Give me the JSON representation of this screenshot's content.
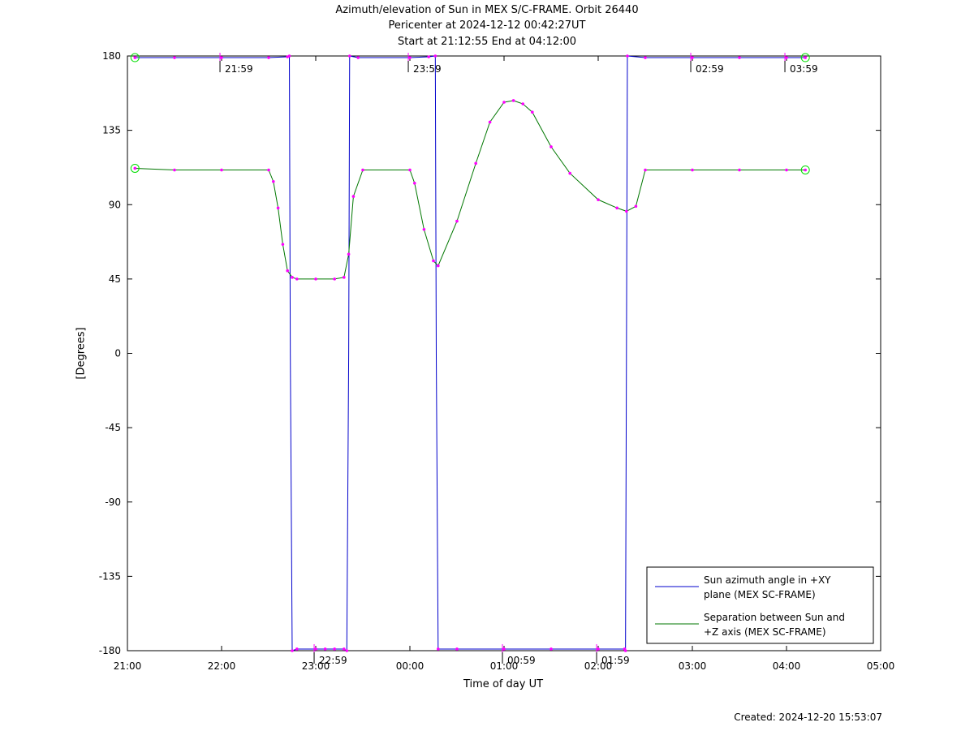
{
  "title": {
    "line1": "Azimuth/elevation of Sun in MEX S/C-FRAME.  Orbit 26440",
    "line2": "Pericenter at 2024-12-12 00:42:27UT",
    "line3": "Start at 21:12:55 End at 04:12:00"
  },
  "xlabel": "Time of day UT",
  "ylabel": "[Degrees]",
  "created": "Created: 2024-12-20 15:53:07",
  "chart_data": {
    "type": "line",
    "x_unit": "hours since 21:00 UT",
    "xlim": [
      0,
      8
    ],
    "ylim": [
      -180,
      180
    ],
    "x_ticks": [
      {
        "x": 0,
        "label": "21:00"
      },
      {
        "x": 1,
        "label": "22:00"
      },
      {
        "x": 2,
        "label": "23:00"
      },
      {
        "x": 3,
        "label": "00:00"
      },
      {
        "x": 4,
        "label": "01:00"
      },
      {
        "x": 5,
        "label": "02:00"
      },
      {
        "x": 6,
        "label": "03:00"
      },
      {
        "x": 7,
        "label": "04:00"
      },
      {
        "x": 8,
        "label": "05:00"
      }
    ],
    "y_ticks": [
      180,
      135,
      90,
      45,
      0,
      -45,
      -90,
      -135,
      -180
    ],
    "legend": {
      "position": "bottom-right",
      "entries": [
        {
          "line1": "Sun azimuth angle in +XY",
          "line2": "plane (MEX SC-FRAME)",
          "color": "#0000cc"
        },
        {
          "line1": "Separation between Sun and",
          "line2": "+Z axis (MEX SC-FRAME)",
          "color": "#007700"
        }
      ]
    },
    "marker_color": "#ff00ff",
    "start_end_marker_color": "#00dd00",
    "hour_markers": [
      {
        "x": 0.983,
        "label": "21:59",
        "series": "azimuth"
      },
      {
        "x": 1.983,
        "label": "22:59",
        "series": "azimuth"
      },
      {
        "x": 2.983,
        "label": "23:59",
        "series": "azimuth"
      },
      {
        "x": 3.983,
        "label": "00:59",
        "series": "azimuth"
      },
      {
        "x": 4.983,
        "label": "01:59",
        "series": "azimuth"
      },
      {
        "x": 5.983,
        "label": "02:59",
        "series": "azimuth"
      },
      {
        "x": 6.983,
        "label": "03:59",
        "series": "azimuth"
      }
    ],
    "series": [
      {
        "name": "Sun azimuth angle in +XY plane (MEX SC-FRAME)",
        "color": "#0000cc",
        "x": [
          0.08,
          0.5,
          1.0,
          1.5,
          1.7,
          1.72,
          1.73,
          1.75,
          1.8,
          2.0,
          2.1,
          2.2,
          2.3,
          2.33,
          2.35,
          2.36,
          2.45,
          3.0,
          3.2,
          3.27,
          3.28,
          3.3,
          3.5,
          4.0,
          4.5,
          5.0,
          5.28,
          5.29,
          5.3,
          5.31,
          5.5,
          6.0,
          6.5,
          7.0,
          7.2
        ],
        "y": [
          179,
          179,
          179,
          179,
          179.5,
          180,
          0,
          -180,
          -179,
          -179,
          -179,
          -179,
          -179,
          -180,
          0,
          180,
          179,
          179,
          179.5,
          180,
          0,
          -179,
          -179,
          -179,
          -179,
          -179,
          -179,
          -180,
          0,
          180,
          179,
          179,
          179,
          179,
          179
        ]
      },
      {
        "name": "Separation between Sun and +Z axis (MEX SC-FRAME)",
        "color": "#007700",
        "x": [
          0.08,
          0.5,
          1.0,
          1.5,
          1.55,
          1.6,
          1.65,
          1.7,
          1.75,
          1.8,
          2.0,
          2.2,
          2.3,
          2.35,
          2.4,
          2.5,
          3.0,
          3.05,
          3.15,
          3.25,
          3.3,
          3.5,
          3.7,
          3.85,
          4.0,
          4.1,
          4.2,
          4.3,
          4.5,
          4.7,
          5.0,
          5.2,
          5.3,
          5.4,
          5.5,
          6.0,
          6.5,
          7.0,
          7.2
        ],
        "y": [
          112,
          111,
          111,
          111,
          104,
          88,
          66,
          50,
          46,
          45,
          45,
          45,
          46,
          60,
          95,
          111,
          111,
          103,
          75,
          56,
          53,
          80,
          115,
          140,
          152,
          153,
          151,
          146,
          125,
          109,
          93,
          88,
          86,
          89,
          111,
          111,
          111,
          111,
          111
        ]
      }
    ]
  }
}
